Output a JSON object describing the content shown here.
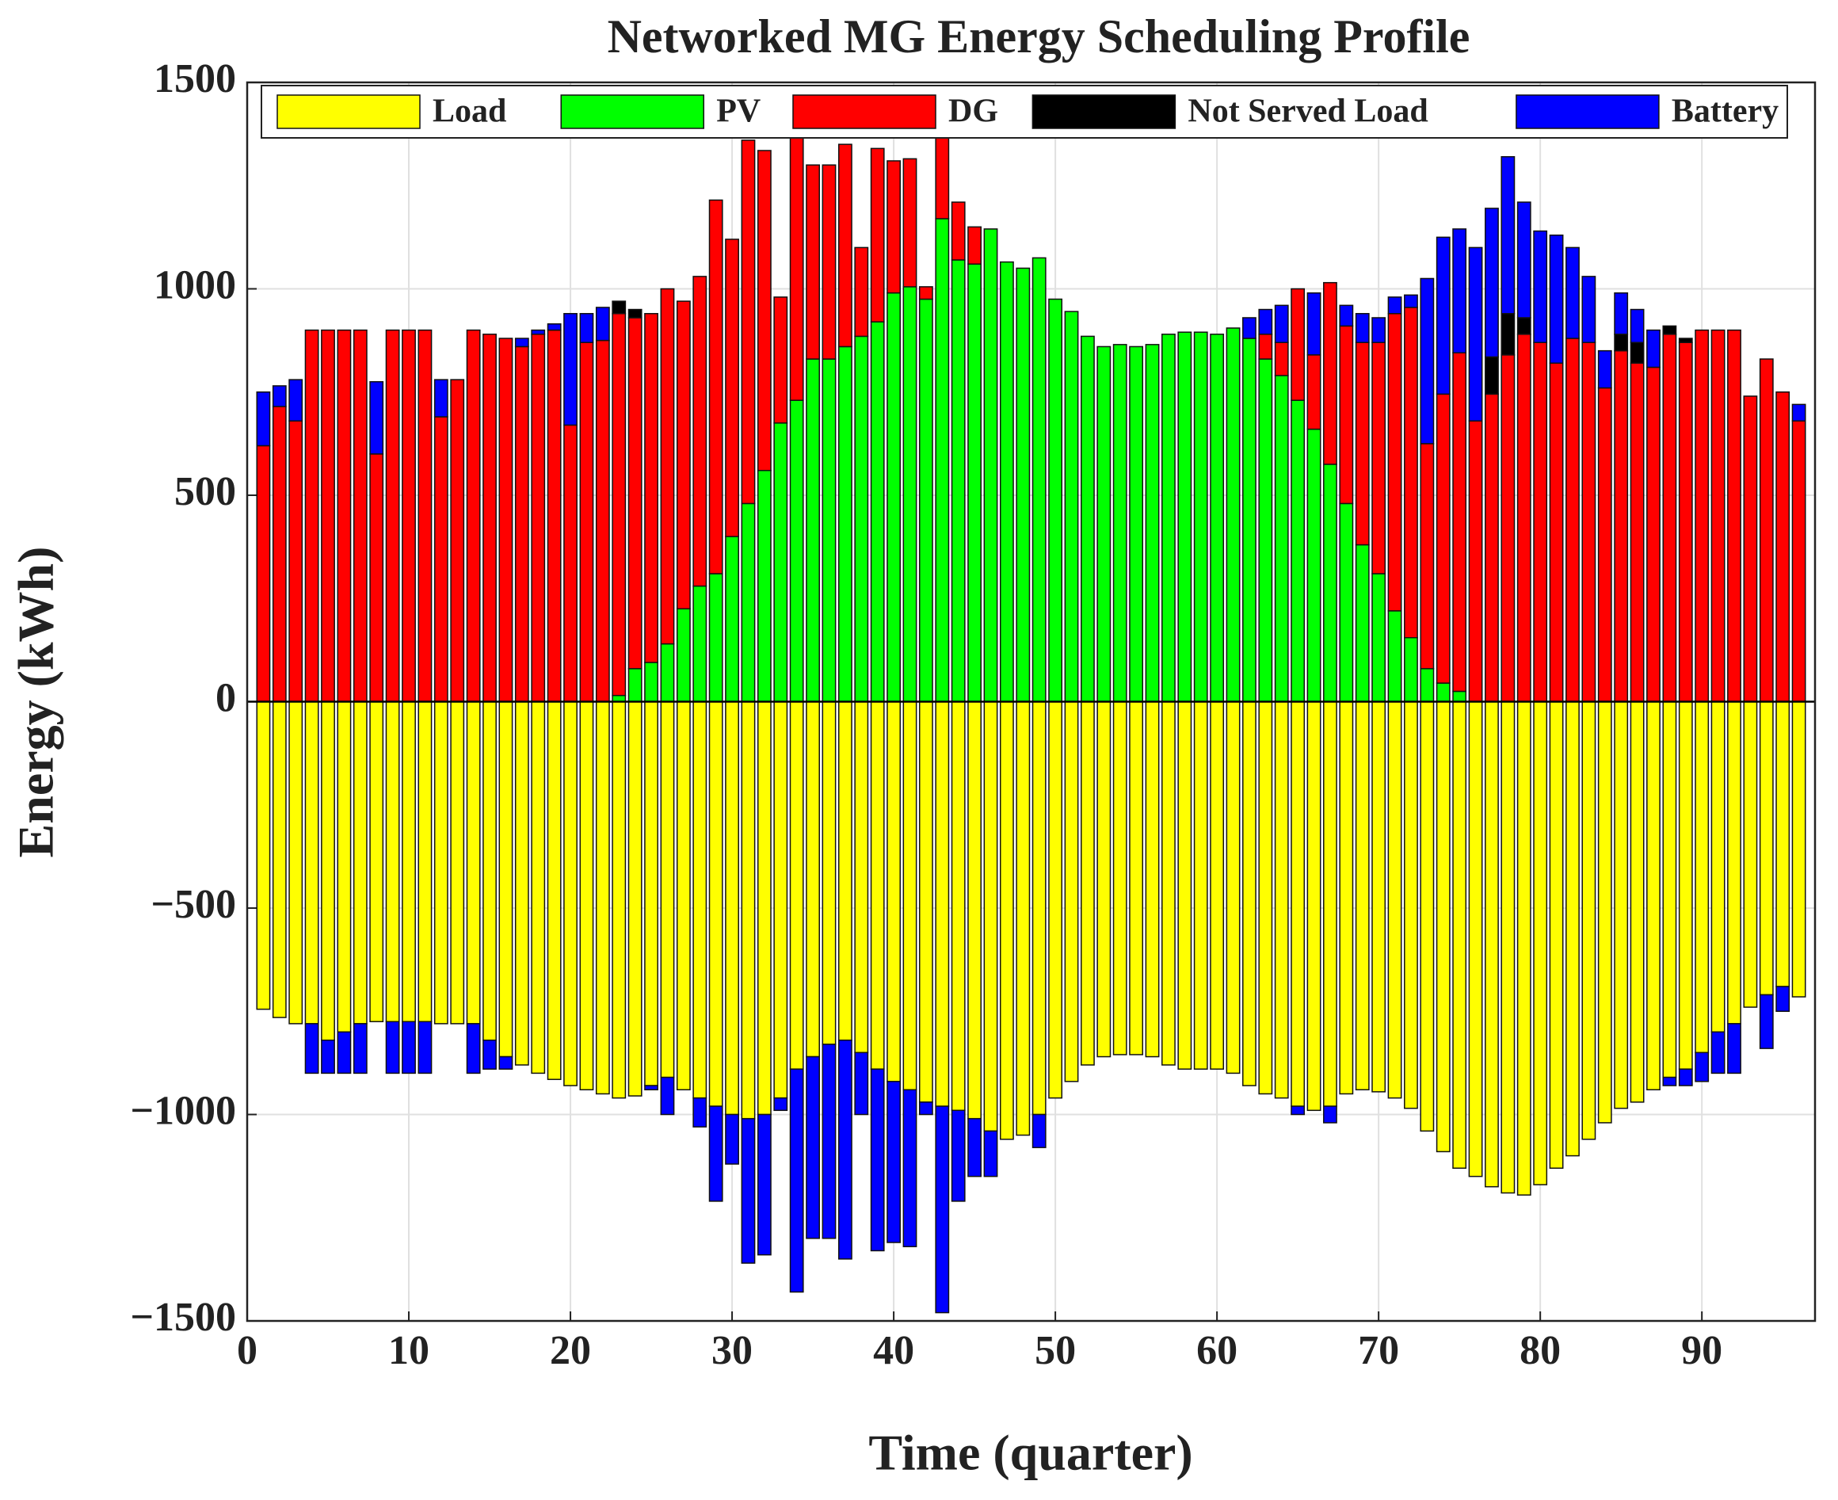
{
  "chart_data": {
    "type": "bar",
    "stacked": true,
    "title": "Networked MG Energy Scheduling Profile",
    "x_label": "Time (quarter)",
    "y_label": "Energy (kWh)",
    "x": [
      1,
      2,
      3,
      4,
      5,
      6,
      7,
      8,
      9,
      10,
      11,
      12,
      13,
      14,
      15,
      16,
      17,
      18,
      19,
      20,
      21,
      22,
      23,
      24,
      25,
      26,
      27,
      28,
      29,
      30,
      31,
      32,
      33,
      34,
      35,
      36,
      37,
      38,
      39,
      40,
      41,
      42,
      43,
      44,
      45,
      46,
      47,
      48,
      49,
      50,
      51,
      52,
      53,
      54,
      55,
      56,
      57,
      58,
      59,
      60,
      61,
      62,
      63,
      64,
      65,
      66,
      67,
      68,
      69,
      70,
      71,
      72,
      73,
      74,
      75,
      76,
      77,
      78,
      79,
      80,
      81,
      82,
      83,
      84,
      85,
      86,
      87,
      88,
      89,
      90,
      91,
      92,
      93,
      94,
      95,
      96
    ],
    "series": [
      {
        "name": "Load",
        "color": "#ffff00",
        "values": [
          -745,
          -765,
          -780,
          -780,
          -820,
          -800,
          -780,
          -775,
          -775,
          -775,
          -775,
          -780,
          -780,
          -780,
          -820,
          -860,
          -880,
          -900,
          -915,
          -930,
          -940,
          -950,
          -960,
          -955,
          -930,
          -910,
          -940,
          -960,
          -980,
          -1000,
          -1010,
          -1000,
          -960,
          -890,
          -860,
          -830,
          -820,
          -850,
          -890,
          -920,
          -940,
          -970,
          -980,
          -990,
          -1010,
          -1040,
          -1060,
          -1050,
          -1000,
          -960,
          -920,
          -880,
          -860,
          -855,
          -855,
          -860,
          -880,
          -890,
          -890,
          -890,
          -900,
          -930,
          -950,
          -960,
          -980,
          -990,
          -980,
          -950,
          -940,
          -945,
          -960,
          -985,
          -1040,
          -1090,
          -1130,
          -1150,
          -1175,
          -1190,
          -1195,
          -1170,
          -1130,
          -1100,
          -1060,
          -1020,
          -985,
          -970,
          -940,
          -910,
          -890,
          -850,
          -800,
          -780,
          -740,
          -710,
          -690,
          -715
        ]
      },
      {
        "name": "PV",
        "color": "#00ff00",
        "values": [
          0,
          0,
          0,
          0,
          0,
          0,
          0,
          0,
          0,
          0,
          0,
          0,
          0,
          0,
          0,
          0,
          0,
          0,
          0,
          0,
          0,
          0,
          15,
          80,
          95,
          140,
          225,
          280,
          310,
          400,
          480,
          560,
          675,
          730,
          830,
          830,
          860,
          885,
          920,
          990,
          1005,
          975,
          1170,
          1070,
          1060,
          1145,
          1065,
          1050,
          1075,
          975,
          945,
          885,
          860,
          865,
          860,
          865,
          890,
          895,
          895,
          890,
          905,
          880,
          830,
          790,
          730,
          660,
          575,
          480,
          380,
          310,
          220,
          155,
          80,
          45,
          25,
          0,
          0,
          0,
          0,
          0,
          0,
          0,
          0,
          0,
          0,
          0,
          0,
          0,
          0,
          0,
          0,
          0,
          0,
          0,
          0,
          0
        ]
      },
      {
        "name": "DG",
        "color": "#ff0000",
        "values": [
          620,
          715,
          680,
          900,
          900,
          900,
          900,
          600,
          900,
          900,
          900,
          690,
          780,
          900,
          890,
          880,
          860,
          890,
          900,
          670,
          870,
          875,
          925,
          850,
          845,
          860,
          745,
          750,
          905,
          720,
          880,
          775,
          305,
          700,
          470,
          470,
          490,
          215,
          420,
          320,
          310,
          30,
          310,
          140,
          90,
          0,
          0,
          0,
          0,
          0,
          0,
          0,
          0,
          0,
          0,
          0,
          0,
          0,
          0,
          0,
          0,
          0,
          60,
          80,
          270,
          180,
          440,
          430,
          490,
          560,
          720,
          800,
          545,
          700,
          820,
          680,
          745,
          840,
          890,
          870,
          820,
          880,
          870,
          760,
          850,
          820,
          810,
          890,
          870,
          900,
          900,
          900,
          740,
          830,
          750,
          680
        ]
      },
      {
        "name": "Not Served Load",
        "color": "#000000",
        "values": [
          0,
          0,
          0,
          0,
          0,
          0,
          0,
          0,
          0,
          0,
          0,
          0,
          0,
          0,
          0,
          0,
          0,
          0,
          0,
          0,
          0,
          0,
          30,
          20,
          0,
          0,
          0,
          0,
          0,
          0,
          0,
          0,
          0,
          0,
          0,
          0,
          0,
          0,
          0,
          0,
          0,
          0,
          0,
          0,
          0,
          0,
          0,
          0,
          0,
          0,
          0,
          0,
          0,
          0,
          0,
          0,
          0,
          0,
          0,
          0,
          0,
          0,
          0,
          0,
          0,
          0,
          0,
          0,
          0,
          0,
          0,
          0,
          0,
          0,
          0,
          0,
          90,
          100,
          40,
          0,
          0,
          0,
          0,
          0,
          40,
          50,
          0,
          20,
          10,
          0,
          0,
          0,
          0,
          0,
          0,
          0
        ]
      },
      {
        "name": "Battery",
        "color": "#0000ff",
        "values": [
          130,
          50,
          100,
          -120,
          -80,
          -100,
          -120,
          175,
          -125,
          -125,
          -125,
          90,
          0,
          -120,
          -70,
          -30,
          20,
          10,
          15,
          270,
          70,
          80,
          0,
          0,
          -10,
          -90,
          0,
          -70,
          -230,
          -120,
          -350,
          -340,
          -30,
          -540,
          -440,
          -470,
          -530,
          -150,
          -440,
          -390,
          -380,
          -30,
          -500,
          -220,
          -140,
          -110,
          0,
          0,
          -80,
          0,
          0,
          0,
          0,
          0,
          0,
          0,
          0,
          0,
          0,
          0,
          0,
          50,
          60,
          90,
          -20,
          150,
          -40,
          50,
          70,
          60,
          40,
          30,
          400,
          380,
          300,
          420,
          360,
          380,
          280,
          270,
          310,
          220,
          160,
          90,
          100,
          80,
          90,
          -20,
          -40,
          -70,
          -100,
          -120,
          0,
          -130,
          -60,
          40
        ]
      }
    ],
    "xlim": [
      0,
      97
    ],
    "xticks": [
      0,
      10,
      20,
      30,
      40,
      50,
      60,
      70,
      80,
      90
    ],
    "ylim": [
      -1500,
      1500
    ],
    "yticks": [
      {
        "value": -1500,
        "label": "−1500"
      },
      {
        "value": -1000,
        "label": "−1000"
      },
      {
        "value": -500,
        "label": "−500"
      },
      0,
      500,
      1000,
      1500
    ],
    "grid": true,
    "legend": "top"
  }
}
